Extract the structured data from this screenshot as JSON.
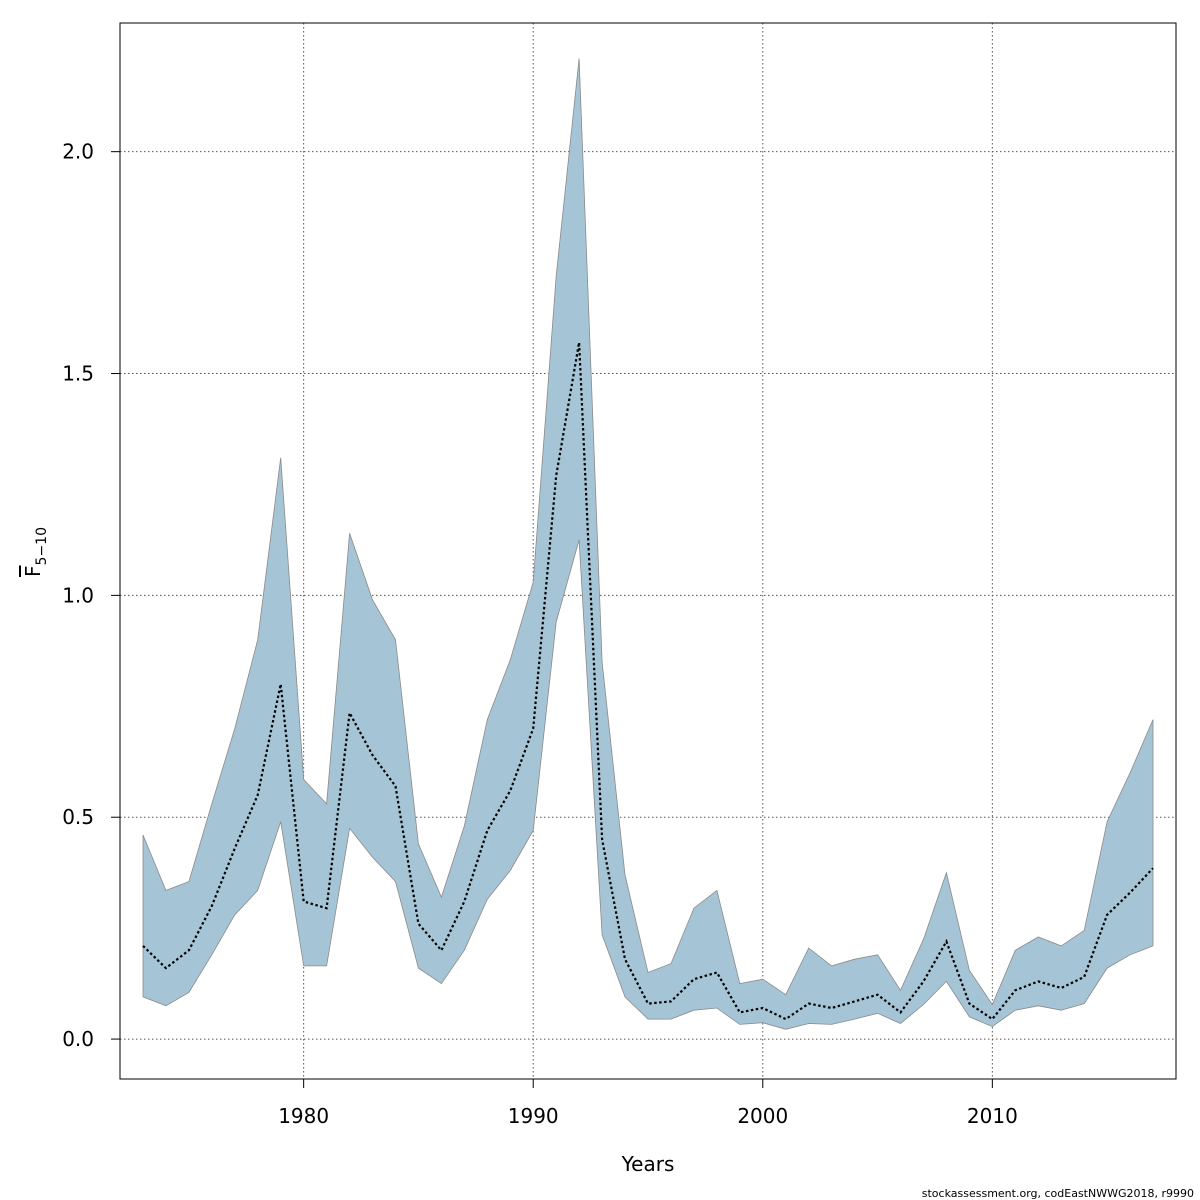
{
  "chart_data": {
    "type": "area",
    "xlabel": "Years",
    "ylabel": {
      "main": "F",
      "subscript": "5−10",
      "overline": true
    },
    "xlim": [
      1972,
      2018
    ],
    "ylim": [
      -0.09,
      2.29
    ],
    "x_ticks": [
      1980,
      1990,
      2000,
      2010
    ],
    "y_ticks": [
      0.0,
      0.5,
      1.0,
      1.5,
      2.0
    ],
    "y_tick_labels": [
      "0.0",
      "0.5",
      "1.0",
      "1.5",
      "2.0"
    ],
    "grid": true,
    "band_color": "#a5c5d6",
    "band_stroke": "#8a8a8a",
    "line_color": "#000000",
    "x": [
      1973,
      1974,
      1975,
      1976,
      1977,
      1978,
      1979,
      1980,
      1981,
      1982,
      1983,
      1984,
      1985,
      1986,
      1987,
      1988,
      1989,
      1990,
      1991,
      1992,
      1993,
      1994,
      1995,
      1996,
      1997,
      1998,
      1999,
      2000,
      2001,
      2002,
      2003,
      2004,
      2005,
      2006,
      2007,
      2008,
      2009,
      2010,
      2011,
      2012,
      2013,
      2014,
      2015,
      2016,
      2017
    ],
    "series": [
      {
        "role": "estimate",
        "values": [
          0.21,
          0.16,
          0.2,
          0.3,
          0.43,
          0.55,
          0.8,
          0.31,
          0.295,
          0.735,
          0.64,
          0.57,
          0.26,
          0.2,
          0.31,
          0.47,
          0.56,
          0.7,
          1.27,
          1.57,
          0.45,
          0.18,
          0.08,
          0.085,
          0.135,
          0.15,
          0.06,
          0.07,
          0.045,
          0.08,
          0.07,
          0.085,
          0.1,
          0.06,
          0.13,
          0.22,
          0.08,
          0.045,
          0.11,
          0.13,
          0.115,
          0.14,
          0.28,
          0.33,
          0.385
        ]
      },
      {
        "role": "lower",
        "values": [
          0.095,
          0.075,
          0.105,
          0.19,
          0.28,
          0.335,
          0.49,
          0.165,
          0.165,
          0.475,
          0.41,
          0.355,
          0.16,
          0.125,
          0.2,
          0.315,
          0.38,
          0.47,
          0.94,
          1.125,
          0.235,
          0.095,
          0.045,
          0.045,
          0.065,
          0.07,
          0.033,
          0.037,
          0.022,
          0.035,
          0.033,
          0.045,
          0.058,
          0.035,
          0.078,
          0.13,
          0.05,
          0.028,
          0.065,
          0.075,
          0.065,
          0.08,
          0.16,
          0.19,
          0.21
        ]
      },
      {
        "role": "upper",
        "values": [
          0.46,
          0.335,
          0.355,
          0.53,
          0.7,
          0.9,
          1.31,
          0.585,
          0.53,
          1.14,
          0.99,
          0.9,
          0.44,
          0.32,
          0.48,
          0.72,
          0.855,
          1.03,
          1.72,
          2.21,
          0.85,
          0.37,
          0.15,
          0.17,
          0.295,
          0.335,
          0.125,
          0.135,
          0.1,
          0.205,
          0.165,
          0.18,
          0.19,
          0.11,
          0.225,
          0.375,
          0.155,
          0.078,
          0.2,
          0.23,
          0.21,
          0.245,
          0.49,
          0.6,
          0.72
        ]
      }
    ]
  },
  "footer": "stockassessment.org, codEastNWWG2018, r9990"
}
